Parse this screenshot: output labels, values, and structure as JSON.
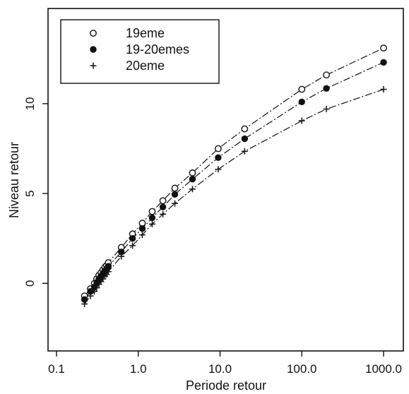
{
  "chart_data": {
    "type": "scatter",
    "title": "",
    "xlabel": "Periode retour",
    "ylabel": "Niveau retour",
    "x_scale": "log",
    "xlim": [
      0.1,
      1000.0
    ],
    "ylim": [
      -2.7,
      14.2
    ],
    "x_ticks": [
      0.1,
      1.0,
      10.0,
      100.0,
      1000.0
    ],
    "x_tick_labels": [
      "0.1",
      "1.0",
      "10.0",
      "100.0",
      "1000.0"
    ],
    "y_ticks": [
      0,
      5,
      10
    ],
    "y_tick_labels": [
      "0",
      "5",
      "10"
    ],
    "grid": false,
    "legend_position": "top-left",
    "series": [
      {
        "name": "19eme",
        "marker": "open-circle",
        "x": [
          0.22,
          0.26,
          0.29,
          0.31,
          0.33,
          0.35,
          0.37,
          0.39,
          0.41,
          0.43,
          0.62,
          0.85,
          1.12,
          1.48,
          2.0,
          2.8,
          4.6,
          9.5,
          20.0,
          100.0,
          200.0,
          1000.0
        ],
        "y": [
          -0.7,
          -0.3,
          0.0,
          0.25,
          0.45,
          0.6,
          0.75,
          0.9,
          1.0,
          1.15,
          2.0,
          2.75,
          3.35,
          4.0,
          4.6,
          5.3,
          6.15,
          7.5,
          8.6,
          10.8,
          11.6,
          13.1
        ]
      },
      {
        "name": "19-20emes",
        "marker": "filled-circle",
        "x": [
          0.22,
          0.26,
          0.29,
          0.31,
          0.33,
          0.35,
          0.37,
          0.39,
          0.41,
          0.43,
          0.62,
          0.85,
          1.12,
          1.48,
          2.0,
          2.8,
          4.6,
          9.5,
          20.0,
          100.0,
          200.0,
          1000.0
        ],
        "y": [
          -0.9,
          -0.45,
          -0.2,
          0.05,
          0.25,
          0.4,
          0.55,
          0.7,
          0.8,
          0.95,
          1.75,
          2.5,
          3.05,
          3.65,
          4.25,
          4.95,
          5.8,
          7.0,
          8.05,
          10.1,
          10.85,
          12.3
        ]
      },
      {
        "name": "20eme",
        "marker": "plus",
        "x": [
          0.22,
          0.26,
          0.29,
          0.31,
          0.33,
          0.35,
          0.37,
          0.39,
          0.41,
          0.43,
          0.62,
          0.85,
          1.12,
          1.48,
          2.0,
          2.8,
          4.6,
          9.5,
          20.0,
          100.0,
          200.0,
          1000.0
        ],
        "y": [
          -1.15,
          -0.7,
          -0.45,
          -0.25,
          -0.05,
          0.1,
          0.25,
          0.4,
          0.5,
          0.65,
          1.5,
          2.1,
          2.7,
          3.3,
          3.85,
          4.45,
          5.25,
          6.35,
          7.35,
          9.05,
          9.7,
          10.8
        ]
      }
    ]
  }
}
